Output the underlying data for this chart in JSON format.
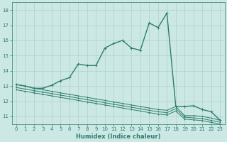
{
  "xlabel": "Humidex (Indice chaleur)",
  "ylabel": "",
  "xlim": [
    -0.5,
    23.5
  ],
  "ylim": [
    10.5,
    18.5
  ],
  "yticks": [
    11,
    12,
    13,
    14,
    15,
    16,
    17,
    18
  ],
  "xticks": [
    0,
    1,
    2,
    3,
    4,
    5,
    6,
    7,
    8,
    9,
    10,
    11,
    12,
    13,
    14,
    15,
    16,
    17,
    18,
    19,
    20,
    21,
    22,
    23
  ],
  "bg_color": "#cce8e4",
  "line_color": "#2e7d6e",
  "grid_color": "#aed0cb",
  "lines": [
    {
      "x": [
        0,
        1,
        2,
        3,
        4,
        5,
        6,
        7,
        8,
        9,
        10,
        11,
        12,
        13,
        14,
        15,
        16,
        17,
        18,
        19,
        20,
        21,
        22,
        23
      ],
      "y": [
        13.1,
        13.0,
        12.85,
        12.75,
        12.65,
        12.55,
        12.45,
        12.35,
        12.25,
        12.15,
        12.05,
        11.95,
        11.85,
        11.75,
        11.65,
        11.55,
        11.45,
        11.4,
        11.65,
        11.05,
        11.05,
        11.0,
        10.88,
        10.75
      ],
      "lw": 0.7,
      "ms": 2
    },
    {
      "x": [
        0,
        1,
        2,
        3,
        4,
        5,
        6,
        7,
        8,
        9,
        10,
        11,
        12,
        13,
        14,
        15,
        16,
        17,
        18,
        19,
        20,
        21,
        22,
        23
      ],
      "y": [
        12.9,
        12.8,
        12.7,
        12.6,
        12.5,
        12.4,
        12.3,
        12.2,
        12.1,
        12.0,
        11.9,
        11.8,
        11.7,
        11.6,
        11.5,
        11.4,
        11.3,
        11.25,
        11.5,
        10.95,
        10.9,
        10.85,
        10.73,
        10.62
      ],
      "lw": 0.7,
      "ms": 2
    },
    {
      "x": [
        0,
        1,
        2,
        3,
        4,
        5,
        6,
        7,
        8,
        9,
        10,
        11,
        12,
        13,
        14,
        15,
        16,
        17,
        18,
        19,
        20,
        21,
        22,
        23
      ],
      "y": [
        12.75,
        12.65,
        12.55,
        12.45,
        12.35,
        12.25,
        12.15,
        12.05,
        11.95,
        11.85,
        11.75,
        11.65,
        11.55,
        11.45,
        11.35,
        11.25,
        11.15,
        11.1,
        11.35,
        10.82,
        10.77,
        10.72,
        10.6,
        10.5
      ],
      "lw": 0.7,
      "ms": 2
    },
    {
      "x": [
        0,
        1,
        2,
        3,
        4,
        5,
        6,
        7,
        8,
        9,
        10,
        11,
        12,
        13,
        14,
        15,
        16,
        17,
        18,
        19,
        20,
        21,
        22,
        23
      ],
      "y": [
        13.1,
        13.0,
        12.85,
        12.85,
        13.05,
        13.35,
        13.55,
        14.45,
        14.35,
        14.35,
        15.5,
        15.8,
        16.0,
        15.5,
        15.35,
        17.15,
        16.85,
        17.8,
        11.65,
        11.65,
        11.7,
        11.45,
        11.3,
        10.75
      ],
      "lw": 1.0,
      "ms": 3
    }
  ]
}
